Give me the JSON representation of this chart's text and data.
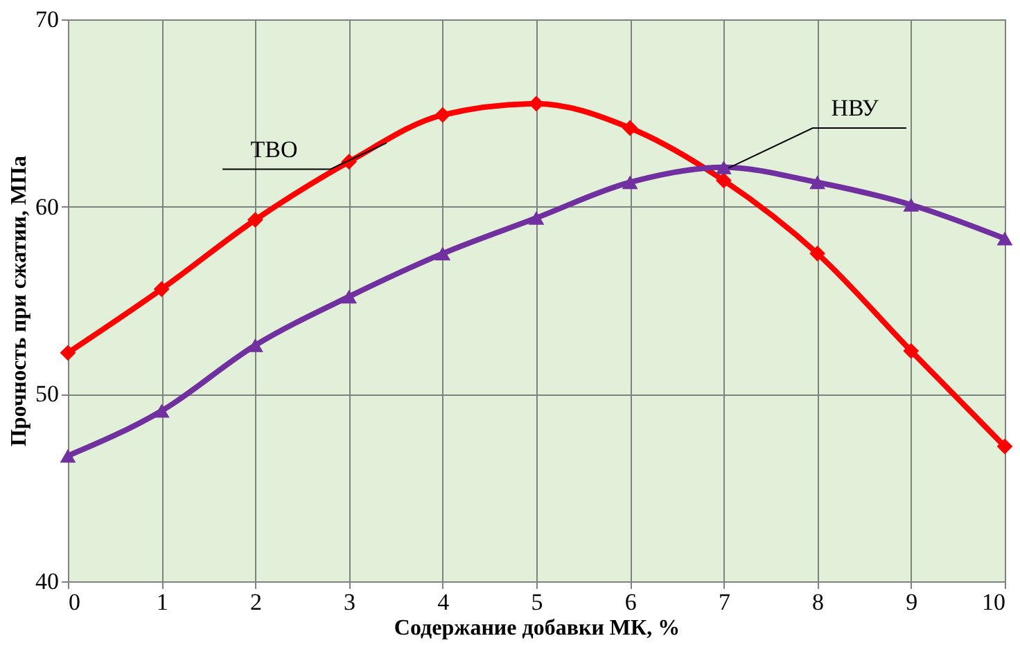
{
  "chart_data": {
    "type": "line",
    "xlabel": "Содержание добавки МК,  %",
    "ylabel": "Прочность при сжатии,  МПа",
    "x": [
      0,
      1,
      2,
      3,
      4,
      5,
      6,
      7,
      8,
      9,
      10
    ],
    "xlim": [
      0,
      10
    ],
    "xticks": [
      0,
      1,
      2,
      3,
      4,
      5,
      6,
      7,
      8,
      9,
      10
    ],
    "ylim": [
      40,
      70
    ],
    "yticks": [
      40,
      50,
      60,
      70
    ],
    "grid": true,
    "series": [
      {
        "name": "ТВО",
        "color": "#ff0000",
        "marker": "diamond",
        "values": [
          52.2,
          55.6,
          59.3,
          62.4,
          64.9,
          65.5,
          64.2,
          61.4,
          57.5,
          52.3,
          47.2
        ]
      },
      {
        "name": "НВУ",
        "color": "#7030a0",
        "marker": "triangle",
        "values": [
          46.7,
          49.1,
          52.6,
          55.2,
          57.5,
          59.4,
          61.3,
          62.1,
          61.3,
          60.1,
          58.3
        ]
      }
    ]
  }
}
